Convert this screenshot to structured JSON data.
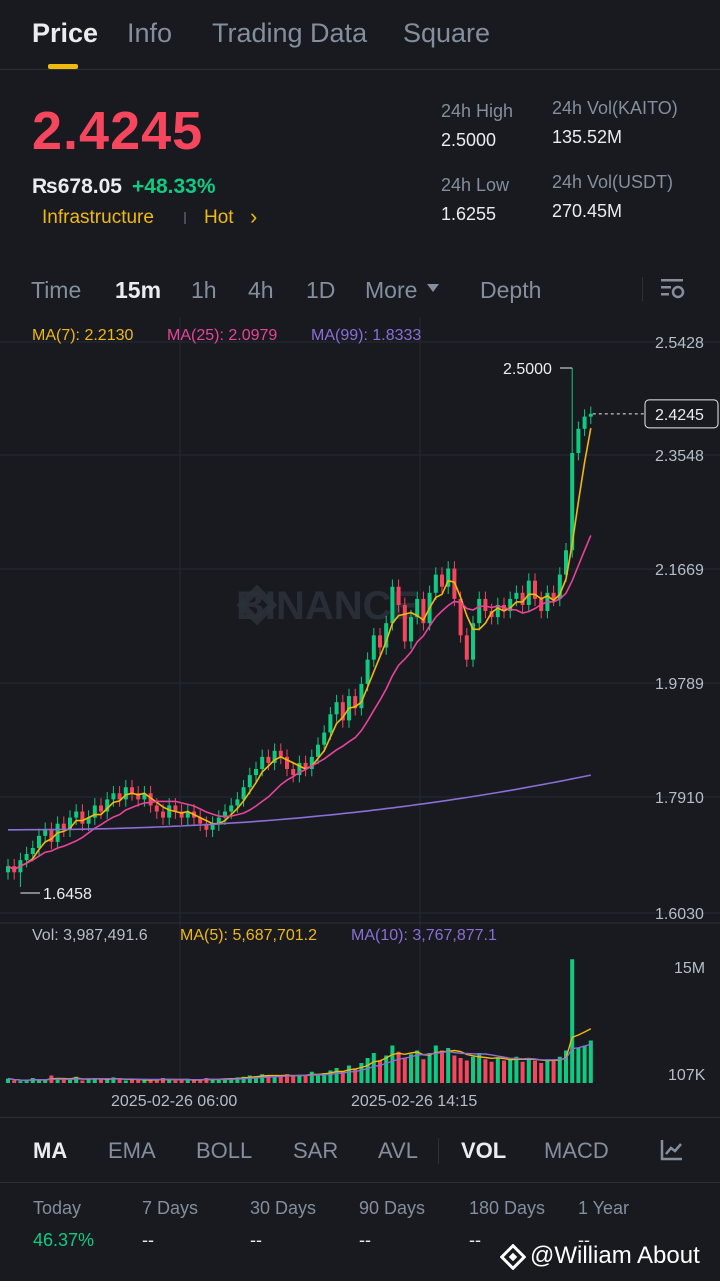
{
  "tabs": [
    "Price",
    "Info",
    "Trading Data",
    "Square"
  ],
  "ticker": {
    "price": "2.4245",
    "fiat": "₨678.05",
    "change": "+48.33%",
    "tag1": "Infrastructure",
    "tag2": "Hot",
    "chevron": "›",
    "high_label": "24h High",
    "high_value": "2.5000",
    "low_label": "24h Low",
    "low_value": "1.6255",
    "vol_base_label": "24h Vol(KAITO)",
    "vol_base_value": "135.52M",
    "vol_quote_label": "24h Vol(USDT)",
    "vol_quote_value": "270.45M"
  },
  "intervals": [
    "Time",
    "15m",
    "1h",
    "4h",
    "1D",
    "More",
    "Depth"
  ],
  "ma_legend": {
    "ma7": "MA(7): 2.2130",
    "ma25": "MA(25): 2.0979",
    "ma99": "MA(99): 1.8333"
  },
  "vol_legend": {
    "vol": "Vol: 3,987,491.6",
    "ma5": "MA(5): 5,687,701.2",
    "ma10": "MA(10): 3,767,877.1"
  },
  "watermark": "BINANCE",
  "colors": {
    "up": "#0ecb81",
    "down": "#f6465d",
    "accent": "#f0b90b",
    "ma7": "#f0b90b",
    "ma25": "#e8439a",
    "ma99": "#8b6ed6"
  },
  "chart_data": {
    "type": "candlestick",
    "y_ticks": [
      "2.5428",
      "2.3548",
      "2.1669",
      "1.9789",
      "1.7910",
      "1.6030"
    ],
    "ylim": [
      1.603,
      2.5428
    ],
    "x_ticks": [
      "2025-02-26 06:00",
      "2025-02-26 14:15"
    ],
    "high_marker": "2.5000",
    "low_marker": "1.6458",
    "last_price": "2.4245",
    "volume_ticks": [
      "15M",
      "107K"
    ],
    "closes": [
      1.68,
      1.67,
      1.69,
      1.7,
      1.71,
      1.73,
      1.74,
      1.72,
      1.75,
      1.74,
      1.76,
      1.77,
      1.75,
      1.76,
      1.78,
      1.77,
      1.79,
      1.8,
      1.79,
      1.81,
      1.8,
      1.79,
      1.8,
      1.78,
      1.77,
      1.76,
      1.78,
      1.77,
      1.76,
      1.77,
      1.76,
      1.75,
      1.74,
      1.75,
      1.76,
      1.77,
      1.78,
      1.79,
      1.81,
      1.83,
      1.84,
      1.86,
      1.85,
      1.87,
      1.86,
      1.84,
      1.83,
      1.85,
      1.84,
      1.86,
      1.88,
      1.9,
      1.93,
      1.95,
      1.92,
      1.96,
      1.94,
      1.98,
      2.02,
      2.06,
      2.04,
      2.08,
      2.14,
      2.11,
      2.05,
      2.09,
      2.12,
      2.08,
      2.13,
      2.16,
      2.14,
      2.17,
      2.12,
      2.06,
      2.02,
      2.08,
      2.12,
      2.1,
      2.09,
      2.11,
      2.1,
      2.12,
      2.13,
      2.11,
      2.15,
      2.12,
      2.1,
      2.13,
      2.12,
      2.16,
      2.2,
      2.36,
      2.4,
      2.42,
      2.4245
    ],
    "volumes": [
      0.35,
      0.2,
      0.15,
      0.18,
      0.4,
      0.3,
      0.2,
      0.6,
      0.35,
      0.3,
      0.25,
      0.5,
      0.2,
      0.3,
      0.4,
      0.3,
      0.25,
      0.45,
      0.3,
      0.2,
      0.25,
      0.3,
      0.2,
      0.25,
      0.3,
      0.4,
      0.25,
      0.2,
      0.3,
      0.25,
      0.2,
      0.3,
      0.4,
      0.25,
      0.3,
      0.35,
      0.4,
      0.45,
      0.5,
      0.6,
      0.55,
      0.7,
      0.6,
      0.5,
      0.6,
      0.7,
      0.55,
      0.65,
      0.6,
      0.9,
      0.7,
      0.8,
      1.0,
      1.2,
      0.9,
      1.4,
      1.1,
      1.6,
      2.0,
      2.4,
      1.8,
      2.2,
      3.0,
      2.5,
      2.0,
      2.3,
      2.6,
      1.9,
      2.4,
      3.0,
      2.6,
      2.8,
      2.2,
      2.0,
      1.8,
      2.1,
      2.4,
      1.9,
      1.7,
      2.0,
      1.8,
      1.9,
      2.1,
      1.7,
      2.0,
      1.8,
      1.6,
      1.9,
      1.8,
      2.1,
      2.6,
      9.9,
      2.8,
      3.0,
      3.4
    ]
  },
  "indicators": [
    "MA",
    "EMA",
    "BOLL",
    "SAR",
    "AVL",
    "VOL",
    "MACD"
  ],
  "performance": {
    "labels": [
      "Today",
      "7 Days",
      "30 Days",
      "90 Days",
      "180 Days",
      "1 Year"
    ],
    "values": [
      "46.37%",
      "--",
      "--",
      "--",
      "--",
      "--"
    ]
  },
  "credit": "@William About"
}
